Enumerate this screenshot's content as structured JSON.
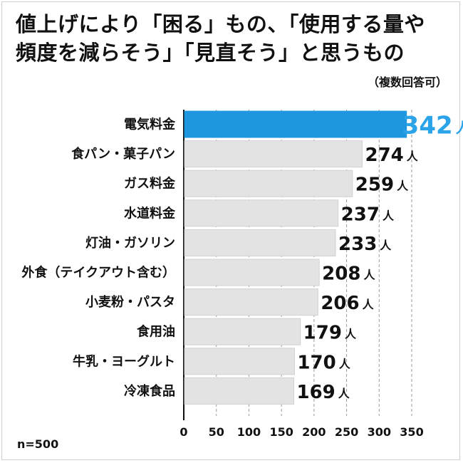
{
  "title_line1": "値上げにより「困る」もの、「使用する量や",
  "title_line2": "頻度を減らそう」「見直そう」と思うもの",
  "subtitle": "（複数回答可）",
  "sample": "n=500",
  "colors": {
    "highlight": "#1f97e0",
    "bar": "#e3e3e3",
    "bar_border": "#d0d0d0",
    "highlight_text": "#2aa3e8"
  },
  "chart_data": {
    "type": "bar",
    "orientation": "horizontal",
    "categories": [
      "電気料金",
      "食パン・菓子パン",
      "ガス料金",
      "水道料金",
      "灯油・ガソリン",
      "外食（テイクアウト含む）",
      "小麦粉・パスタ",
      "食用油",
      "牛乳・ヨーグルト",
      "冷凍食品"
    ],
    "values": [
      342,
      274,
      259,
      237,
      233,
      208,
      206,
      179,
      170,
      169
    ],
    "value_unit": "人",
    "xlim": [
      0,
      350
    ],
    "xticks": [
      0,
      50,
      100,
      150,
      200,
      250,
      300,
      350
    ],
    "grid": "vertical dashed",
    "highlight_index": 0
  }
}
